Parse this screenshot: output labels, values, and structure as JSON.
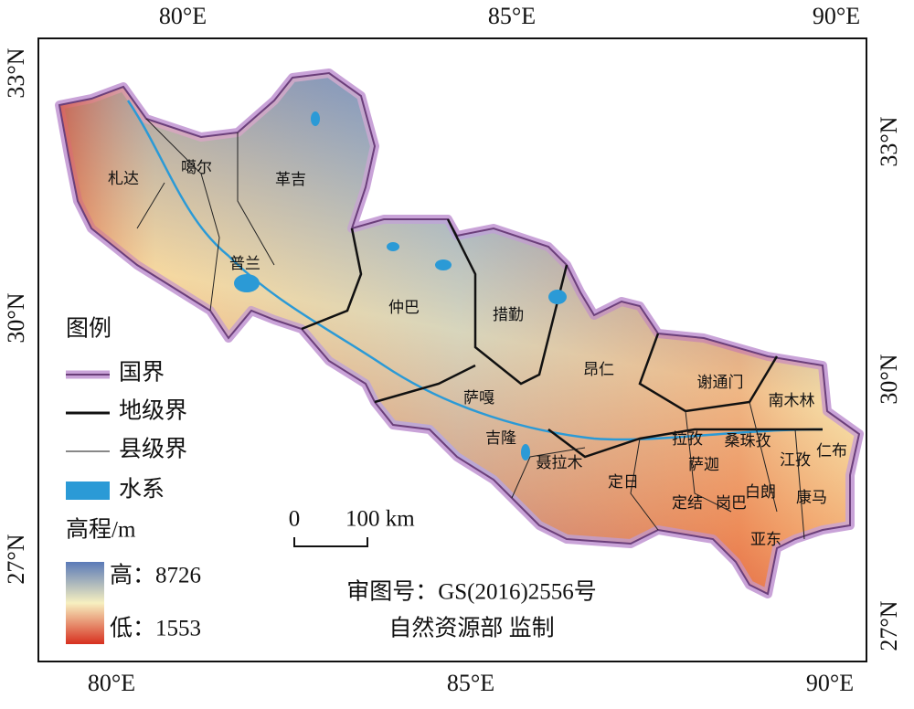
{
  "axes": {
    "top": [
      "80°E",
      "85°E",
      "90°E"
    ],
    "bottom": [
      "80°E",
      "85°E",
      "90°E"
    ],
    "left": [
      "33°N",
      "30°N",
      "27°N"
    ],
    "right": [
      "33°N",
      "30°N",
      "27°N"
    ]
  },
  "places": [
    "札达",
    "噶尔",
    "革吉",
    "普兰",
    "仲巴",
    "措勤",
    "昂仁",
    "萨嘎",
    "吉隆",
    "聂拉木",
    "定日",
    "谢通门",
    "南木林",
    "拉孜",
    "桑珠孜",
    "萨迦",
    "定结",
    "岗巴",
    "白朗",
    "江孜",
    "仁布",
    "康马",
    "亚东"
  ],
  "legend": {
    "title": "图例",
    "items": [
      "国界",
      "地级界",
      "县级界",
      "水系"
    ],
    "elevation_title": "高程/m",
    "high": "高：8726",
    "low": "低：1553"
  },
  "scale_bar": {
    "start": "0",
    "end": "100 km"
  },
  "credits": [
    "审图号：GS(2016)2556号",
    "自然资源部 监制"
  ]
}
